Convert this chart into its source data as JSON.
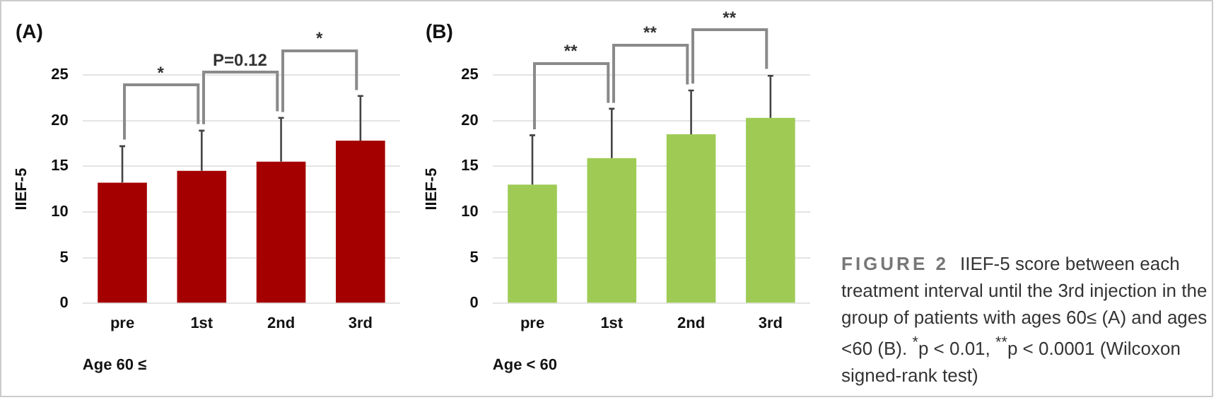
{
  "chart_data": [
    {
      "type": "bar",
      "title": "(A)",
      "xlabel": "Age 60 ≤",
      "ylabel": "IIEF-5",
      "categories": [
        "pre",
        "1st",
        "2nd",
        "3rd"
      ],
      "series": [
        {
          "color": "#a50000",
          "values": [
            13.2,
            14.5,
            15.5,
            17.8
          ],
          "errors": [
            [
              13.2,
              17.2
            ],
            [
              14.5,
              18.9
            ],
            [
              15.5,
              20.3
            ],
            [
              17.8,
              22.7
            ]
          ]
        }
      ],
      "ylim": [
        0,
        25
      ],
      "yticks": [
        0,
        5,
        10,
        15,
        20,
        25
      ],
      "grid": "y",
      "annotations": [
        "*",
        "P=0.12",
        "*"
      ]
    },
    {
      "type": "bar",
      "title": "(B)",
      "xlabel": "Age < 60",
      "ylabel": "IIEF-5",
      "categories": [
        "pre",
        "1st",
        "2nd",
        "3rd"
      ],
      "series": [
        {
          "color": "#9fcb55",
          "values": [
            13.0,
            15.9,
            18.5,
            20.3
          ],
          "errors": [
            [
              13.0,
              18.4
            ],
            [
              15.9,
              21.3
            ],
            [
              18.5,
              23.3
            ],
            [
              20.3,
              24.9
            ]
          ]
        }
      ],
      "ylim": [
        0,
        25
      ],
      "yticks": [
        0,
        5,
        10,
        15,
        20,
        25
      ],
      "grid": "y",
      "annotations": [
        "**",
        "**",
        "**"
      ]
    },
    {
      "type": "other",
      "title": "FIGURE 2",
      "annotations": [
        "IIEF-5 score between each treatment interval until the 3rd injection in the group of patients with ages 60≤ (A) and ages <60 (B). $^{*}$p < 0.01, $^{**}$p < 0.0001 (Wilcoxon signed-rank test)"
      ]
    }
  ]
}
